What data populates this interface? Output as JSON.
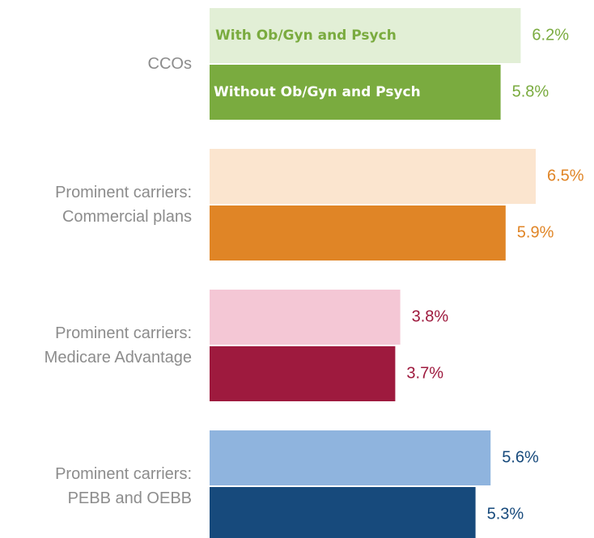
{
  "chart_data": {
    "type": "hbar",
    "categories": [
      "CCOs",
      "Prominent carriers:\nCommercial plans",
      "Prominent carriers:\nMedicare Advantage",
      "Prominent carriers:\nPEBB and OEBB"
    ],
    "series": [
      {
        "name": "With Ob/Gyn and Psych",
        "colors": [
          "#e2efd6",
          "#fbe5cf",
          "#f4c7d5",
          "#8fb4de"
        ],
        "values": [
          6.2,
          6.5,
          3.8,
          5.6
        ],
        "value_labels": [
          "6.2%",
          "6.5%",
          "3.8%",
          "5.6%"
        ]
      },
      {
        "name": "Without Ob/Gyn and Psych",
        "colors": [
          "#7aab3f",
          "#e08526",
          "#9e1a3e",
          "#174a7c"
        ],
        "values": [
          5.8,
          5.9,
          3.7,
          5.3
        ],
        "value_labels": [
          "5.8%",
          "5.9%",
          "3.7%",
          "5.3%"
        ]
      }
    ],
    "label_colors": [
      "#7aab3f",
      "#e08526",
      "#9e1a3e",
      "#174a7c"
    ],
    "name_colors": [
      "#7aab3f",
      "#ffffff"
    ]
  }
}
